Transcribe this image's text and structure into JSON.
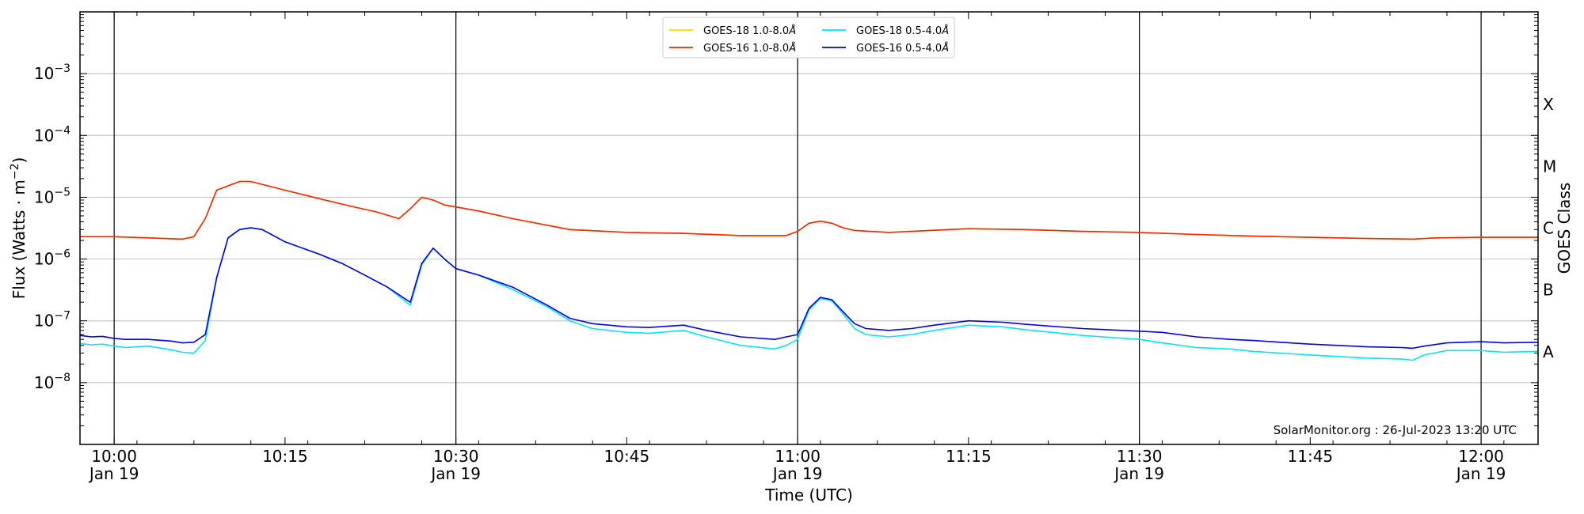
{
  "chart_data": {
    "type": "line",
    "title": "",
    "xlabel": "Time (UTC)",
    "ylabel": "Flux (Watts · m",
    "ylabel_sup": "−2",
    "ylabel_end": ")",
    "y2label": "GOES Class",
    "yscale": "log",
    "ylim": [
      1e-09,
      0.01
    ],
    "xlim": [
      "09:57",
      "12:05"
    ],
    "grid": "horizontal",
    "legend_position": "top-center",
    "x_ticks": [
      {
        "time": "10:00",
        "label": "10:00",
        "sublabel": "Jan 19"
      },
      {
        "time": "10:15",
        "label": "10:15",
        "sublabel": ""
      },
      {
        "time": "10:30",
        "label": "10:30",
        "sublabel": "Jan 19"
      },
      {
        "time": "10:45",
        "label": "10:45",
        "sublabel": ""
      },
      {
        "time": "11:00",
        "label": "11:00",
        "sublabel": "Jan 19"
      },
      {
        "time": "11:15",
        "label": "11:15",
        "sublabel": ""
      },
      {
        "time": "11:30",
        "label": "11:30",
        "sublabel": "Jan 19"
      },
      {
        "time": "11:45",
        "label": "11:45",
        "sublabel": ""
      },
      {
        "time": "12:00",
        "label": "12:00",
        "sublabel": "Jan 19"
      }
    ],
    "vertical_lines": [
      "10:00",
      "10:30",
      "11:00",
      "11:30",
      "12:00"
    ],
    "y_ticks": [
      {
        "exp": -8,
        "base": "10",
        "sup": "−8"
      },
      {
        "exp": -7,
        "base": "10",
        "sup": "−7"
      },
      {
        "exp": -6,
        "base": "10",
        "sup": "−6"
      },
      {
        "exp": -5,
        "base": "10",
        "sup": "−5"
      },
      {
        "exp": -4,
        "base": "10",
        "sup": "−4"
      },
      {
        "exp": -3,
        "base": "10",
        "sup": "−3"
      }
    ],
    "goes_classes": [
      {
        "label": "A",
        "exp": -8
      },
      {
        "label": "B",
        "exp": -7
      },
      {
        "label": "C",
        "exp": -6
      },
      {
        "label": "M",
        "exp": -5
      },
      {
        "label": "X",
        "exp": -4
      }
    ],
    "legend": [
      {
        "label": "GOES-18 1.0-8.0",
        "unit": "Å",
        "color": "#ffd700"
      },
      {
        "label": "GOES-16 1.0-8.0",
        "unit": "Å",
        "color": "#ff2200"
      },
      {
        "label": "GOES-18 0.5-4.0",
        "unit": "Å",
        "color": "#00e5ff"
      },
      {
        "label": "GOES-16 0.5-4.0",
        "unit": "Å",
        "color": "#0000ee"
      }
    ],
    "series": [
      {
        "name": "GOES-18 1.0-8.0Å",
        "color": "#ffd700",
        "points": [
          [
            "09:57",
            2.3e-06
          ],
          [
            "10:00",
            2.3e-06
          ],
          [
            "10:03",
            2.2e-06
          ],
          [
            "10:06",
            2.1e-06
          ],
          [
            "10:07",
            2.3e-06
          ],
          [
            "10:08",
            4.5e-06
          ],
          [
            "10:09",
            1.3e-05
          ],
          [
            "10:11",
            1.8e-05
          ],
          [
            "10:12",
            1.8e-05
          ],
          [
            "10:15",
            1.3e-05
          ],
          [
            "10:18",
            9.5e-06
          ],
          [
            "10:21",
            7e-06
          ],
          [
            "10:23",
            5.8e-06
          ],
          [
            "10:25",
            4.5e-06
          ],
          [
            "10:26",
            6.5e-06
          ],
          [
            "10:27",
            1e-05
          ],
          [
            "10:28",
            9e-06
          ],
          [
            "10:29",
            7.5e-06
          ],
          [
            "10:32",
            6e-06
          ],
          [
            "10:35",
            4.5e-06
          ],
          [
            "10:40",
            3e-06
          ],
          [
            "10:45",
            2.7e-06
          ],
          [
            "10:50",
            2.6e-06
          ],
          [
            "10:55",
            2.4e-06
          ],
          [
            "10:59",
            2.4e-06
          ],
          [
            "11:00",
            2.8e-06
          ],
          [
            "11:01",
            3.8e-06
          ],
          [
            "11:02",
            4.1e-06
          ],
          [
            "11:03",
            3.8e-06
          ],
          [
            "11:04",
            3.2e-06
          ],
          [
            "11:05",
            2.9e-06
          ],
          [
            "11:08",
            2.7e-06
          ],
          [
            "11:10",
            2.8e-06
          ],
          [
            "11:15",
            3.1e-06
          ],
          [
            "11:20",
            3e-06
          ],
          [
            "11:25",
            2.8e-06
          ],
          [
            "11:30",
            2.7e-06
          ],
          [
            "11:35",
            2.5e-06
          ],
          [
            "11:40",
            2.35e-06
          ],
          [
            "11:45",
            2.25e-06
          ],
          [
            "11:50",
            2.15e-06
          ],
          [
            "11:54",
            2.1e-06
          ],
          [
            "11:56",
            2.2e-06
          ],
          [
            "12:00",
            2.25e-06
          ],
          [
            "12:05",
            2.25e-06
          ]
        ]
      },
      {
        "name": "GOES-16 1.0-8.0Å",
        "color": "#ff2200",
        "points": [
          [
            "09:57",
            2.3e-06
          ],
          [
            "10:00",
            2.3e-06
          ],
          [
            "10:03",
            2.2e-06
          ],
          [
            "10:06",
            2.1e-06
          ],
          [
            "10:07",
            2.3e-06
          ],
          [
            "10:08",
            4.5e-06
          ],
          [
            "10:09",
            1.3e-05
          ],
          [
            "10:11",
            1.8e-05
          ],
          [
            "10:12",
            1.8e-05
          ],
          [
            "10:15",
            1.3e-05
          ],
          [
            "10:18",
            9.5e-06
          ],
          [
            "10:21",
            7e-06
          ],
          [
            "10:23",
            5.8e-06
          ],
          [
            "10:25",
            4.5e-06
          ],
          [
            "10:26",
            6.5e-06
          ],
          [
            "10:27",
            1e-05
          ],
          [
            "10:28",
            9e-06
          ],
          [
            "10:29",
            7.5e-06
          ],
          [
            "10:32",
            6e-06
          ],
          [
            "10:35",
            4.5e-06
          ],
          [
            "10:40",
            3e-06
          ],
          [
            "10:45",
            2.7e-06
          ],
          [
            "10:50",
            2.6e-06
          ],
          [
            "10:55",
            2.4e-06
          ],
          [
            "10:59",
            2.4e-06
          ],
          [
            "11:00",
            2.8e-06
          ],
          [
            "11:01",
            3.8e-06
          ],
          [
            "11:02",
            4.1e-06
          ],
          [
            "11:03",
            3.8e-06
          ],
          [
            "11:04",
            3.2e-06
          ],
          [
            "11:05",
            2.9e-06
          ],
          [
            "11:08",
            2.7e-06
          ],
          [
            "11:10",
            2.8e-06
          ],
          [
            "11:15",
            3.1e-06
          ],
          [
            "11:20",
            3e-06
          ],
          [
            "11:25",
            2.8e-06
          ],
          [
            "11:30",
            2.7e-06
          ],
          [
            "11:35",
            2.5e-06
          ],
          [
            "11:40",
            2.35e-06
          ],
          [
            "11:45",
            2.25e-06
          ],
          [
            "11:50",
            2.15e-06
          ],
          [
            "11:54",
            2.1e-06
          ],
          [
            "11:56",
            2.2e-06
          ],
          [
            "12:00",
            2.25e-06
          ],
          [
            "12:05",
            2.25e-06
          ]
        ]
      },
      {
        "name": "GOES-18 0.5-4.0Å",
        "color": "#00e5ff",
        "points": [
          [
            "09:57",
            4.3e-08
          ],
          [
            "09:58",
            4.1e-08
          ],
          [
            "09:59",
            4.2e-08
          ],
          [
            "10:00",
            3.9e-08
          ],
          [
            "10:01",
            3.7e-08
          ],
          [
            "10:03",
            3.9e-08
          ],
          [
            "10:05",
            3.4e-08
          ],
          [
            "10:06",
            3.1e-08
          ],
          [
            "10:07",
            3e-08
          ],
          [
            "10:08",
            4.8e-08
          ],
          [
            "10:09",
            5e-07
          ],
          [
            "10:10",
            2.2e-06
          ],
          [
            "10:11",
            3e-06
          ],
          [
            "10:12",
            3.2e-06
          ],
          [
            "10:13",
            3e-06
          ],
          [
            "10:15",
            1.9e-06
          ],
          [
            "10:18",
            1.2e-06
          ],
          [
            "10:20",
            8.5e-07
          ],
          [
            "10:22",
            5.5e-07
          ],
          [
            "10:24",
            3.5e-07
          ],
          [
            "10:26",
            1.8e-07
          ],
          [
            "10:27",
            8e-07
          ],
          [
            "10:28",
            1.5e-06
          ],
          [
            "10:29",
            1e-06
          ],
          [
            "10:30",
            7e-07
          ],
          [
            "10:32",
            5.5e-07
          ],
          [
            "10:35",
            3.2e-07
          ],
          [
            "10:38",
            1.7e-07
          ],
          [
            "10:40",
            1e-07
          ],
          [
            "10:42",
            7.5e-08
          ],
          [
            "10:45",
            6.5e-08
          ],
          [
            "10:47",
            6.3e-08
          ],
          [
            "10:50",
            7e-08
          ],
          [
            "10:52",
            5.5e-08
          ],
          [
            "10:55",
            4e-08
          ],
          [
            "10:58",
            3.5e-08
          ],
          [
            "10:59",
            4e-08
          ],
          [
            "11:00",
            5e-08
          ],
          [
            "11:01",
            1.5e-07
          ],
          [
            "11:02",
            2.3e-07
          ],
          [
            "11:03",
            2.1e-07
          ],
          [
            "11:04",
            1.3e-07
          ],
          [
            "11:05",
            7.5e-08
          ],
          [
            "11:06",
            6e-08
          ],
          [
            "11:08",
            5.5e-08
          ],
          [
            "11:10",
            6e-08
          ],
          [
            "11:12",
            7e-08
          ],
          [
            "11:15",
            8.5e-08
          ],
          [
            "11:18",
            8e-08
          ],
          [
            "11:20",
            7.2e-08
          ],
          [
            "11:25",
            5.8e-08
          ],
          [
            "11:30",
            5e-08
          ],
          [
            "11:32",
            4.4e-08
          ],
          [
            "11:35",
            3.7e-08
          ],
          [
            "11:38",
            3.5e-08
          ],
          [
            "11:40",
            3.2e-08
          ],
          [
            "11:45",
            2.8e-08
          ],
          [
            "11:50",
            2.5e-08
          ],
          [
            "11:53",
            2.4e-08
          ],
          [
            "11:54",
            2.3e-08
          ],
          [
            "11:55",
            2.8e-08
          ],
          [
            "11:57",
            3.3e-08
          ],
          [
            "12:00",
            3.3e-08
          ],
          [
            "12:02",
            3.1e-08
          ],
          [
            "12:05",
            3.2e-08
          ]
        ]
      },
      {
        "name": "GOES-16 0.5-4.0Å",
        "color": "#0000ee",
        "points": [
          [
            "09:57",
            5.8e-08
          ],
          [
            "09:58",
            5.5e-08
          ],
          [
            "09:59",
            5.6e-08
          ],
          [
            "10:00",
            5.2e-08
          ],
          [
            "10:01",
            5e-08
          ],
          [
            "10:03",
            5e-08
          ],
          [
            "10:05",
            4.7e-08
          ],
          [
            "10:06",
            4.4e-08
          ],
          [
            "10:07",
            4.5e-08
          ],
          [
            "10:08",
            6e-08
          ],
          [
            "10:09",
            5e-07
          ],
          [
            "10:10",
            2.2e-06
          ],
          [
            "10:11",
            3e-06
          ],
          [
            "10:12",
            3.2e-06
          ],
          [
            "10:13",
            3e-06
          ],
          [
            "10:15",
            1.9e-06
          ],
          [
            "10:18",
            1.2e-06
          ],
          [
            "10:20",
            8.5e-07
          ],
          [
            "10:22",
            5.5e-07
          ],
          [
            "10:24",
            3.5e-07
          ],
          [
            "10:26",
            2e-07
          ],
          [
            "10:27",
            8.5e-07
          ],
          [
            "10:28",
            1.5e-06
          ],
          [
            "10:29",
            1e-06
          ],
          [
            "10:30",
            7e-07
          ],
          [
            "10:32",
            5.5e-07
          ],
          [
            "10:35",
            3.5e-07
          ],
          [
            "10:38",
            1.8e-07
          ],
          [
            "10:40",
            1.1e-07
          ],
          [
            "10:42",
            9e-08
          ],
          [
            "10:45",
            8e-08
          ],
          [
            "10:47",
            7.8e-08
          ],
          [
            "10:50",
            8.5e-08
          ],
          [
            "10:52",
            7e-08
          ],
          [
            "10:55",
            5.5e-08
          ],
          [
            "10:58",
            5e-08
          ],
          [
            "10:59",
            5.5e-08
          ],
          [
            "11:00",
            6e-08
          ],
          [
            "11:01",
            1.6e-07
          ],
          [
            "11:02",
            2.4e-07
          ],
          [
            "11:03",
            2.2e-07
          ],
          [
            "11:04",
            1.4e-07
          ],
          [
            "11:05",
            9e-08
          ],
          [
            "11:06",
            7.5e-08
          ],
          [
            "11:08",
            7e-08
          ],
          [
            "11:10",
            7.5e-08
          ],
          [
            "11:12",
            8.5e-08
          ],
          [
            "11:15",
            1e-07
          ],
          [
            "11:18",
            9.5e-08
          ],
          [
            "11:20",
            8.8e-08
          ],
          [
            "11:25",
            7.5e-08
          ],
          [
            "11:30",
            6.8e-08
          ],
          [
            "11:32",
            6.5e-08
          ],
          [
            "11:35",
            5.5e-08
          ],
          [
            "11:38",
            5e-08
          ],
          [
            "11:40",
            4.8e-08
          ],
          [
            "11:45",
            4.2e-08
          ],
          [
            "11:50",
            3.8e-08
          ],
          [
            "11:53",
            3.7e-08
          ],
          [
            "11:54",
            3.6e-08
          ],
          [
            "11:55",
            3.9e-08
          ],
          [
            "11:57",
            4.4e-08
          ],
          [
            "12:00",
            4.6e-08
          ],
          [
            "12:02",
            4.4e-08
          ],
          [
            "12:05",
            4.5e-08
          ]
        ]
      }
    ],
    "credit": "SolarMonitor.org : 26-Jul-2023 13:20 UTC"
  }
}
